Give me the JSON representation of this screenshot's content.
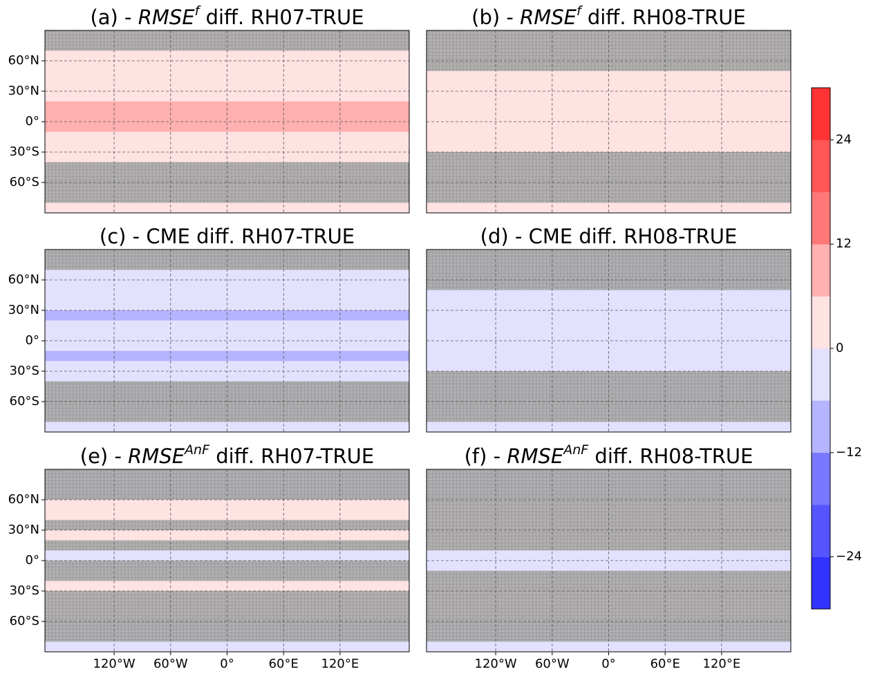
{
  "chart_data": {
    "type": "map_grid",
    "xlim": [
      -193.5,
      193.5
    ],
    "ylim": [
      -90,
      90
    ],
    "xticks": [
      {
        "value": -120,
        "label": "120°W"
      },
      {
        "value": -60,
        "label": "60°W"
      },
      {
        "value": 0,
        "label": "0°"
      },
      {
        "value": 60,
        "label": "60°E"
      },
      {
        "value": 120,
        "label": "120°E"
      }
    ],
    "yticks": [
      {
        "value": 60,
        "label": "60°N"
      },
      {
        "value": 30,
        "label": "30°N"
      },
      {
        "value": 0,
        "label": "0°"
      },
      {
        "value": -30,
        "label": "30°S"
      },
      {
        "value": -60,
        "label": "60°S"
      }
    ],
    "grid": true,
    "mask_color": "#a8a8a8",
    "y": [
      85,
      75,
      65,
      55,
      45,
      35,
      25,
      15,
      5,
      -5,
      -15,
      -25,
      -35,
      -45,
      -55,
      -65,
      -75,
      -85
    ],
    "panels": [
      {
        "title": [
          {
            "text": "(a) - "
          },
          {
            "text": "RMSE",
            "italic": true
          },
          {
            "text": "f",
            "italic": true,
            "sup": true
          },
          {
            "text": " diff. RH07-TRUE"
          }
        ],
        "values": [
          1,
          1,
          2,
          2,
          2,
          3,
          5,
          7,
          7,
          6,
          5,
          4,
          2,
          1,
          1,
          1,
          1,
          1
        ],
        "masked": [
          true,
          true,
          false,
          false,
          false,
          false,
          false,
          false,
          false,
          false,
          false,
          false,
          false,
          true,
          true,
          true,
          true,
          false
        ]
      },
      {
        "title": [
          {
            "text": "(b) - "
          },
          {
            "text": "RMSE",
            "italic": true
          },
          {
            "text": "f",
            "italic": true,
            "sup": true
          },
          {
            "text": " diff. RH08-TRUE"
          }
        ],
        "values": [
          1,
          1,
          1,
          1,
          2,
          2,
          4,
          5,
          5,
          5,
          4,
          3,
          2,
          1,
          1,
          1,
          1,
          1
        ],
        "masked": [
          true,
          true,
          true,
          true,
          false,
          false,
          false,
          false,
          false,
          false,
          false,
          false,
          true,
          true,
          true,
          true,
          true,
          false
        ]
      },
      {
        "title": [
          {
            "text": "(c) - CME diff. RH07-TRUE"
          }
        ],
        "values": [
          -1,
          -2,
          -2,
          -2,
          -3,
          -4,
          -7,
          -6,
          -4,
          -5,
          -7,
          -6,
          -3,
          -2,
          -1,
          -1,
          -1,
          -1
        ],
        "masked": [
          true,
          true,
          false,
          false,
          false,
          false,
          false,
          false,
          false,
          false,
          false,
          false,
          false,
          true,
          true,
          true,
          true,
          false
        ]
      },
      {
        "title": [
          {
            "text": "(d) - CME diff. RH08-TRUE"
          }
        ],
        "values": [
          -1,
          -1,
          -1,
          -1,
          -2,
          -2,
          -4,
          -4,
          -3,
          -3,
          -4,
          -3,
          -2,
          -1,
          -1,
          -1,
          -1,
          -1
        ],
        "masked": [
          true,
          true,
          true,
          true,
          false,
          false,
          false,
          false,
          false,
          false,
          false,
          false,
          true,
          true,
          true,
          true,
          true,
          false
        ]
      },
      {
        "title": [
          {
            "text": "(e) - "
          },
          {
            "text": "RMSE",
            "italic": true
          },
          {
            "text": "AnF",
            "italic": true,
            "sup": true
          },
          {
            "text": " diff. RH07-TRUE"
          }
        ],
        "values": [
          -2,
          -2,
          -1,
          3,
          4,
          4,
          5,
          2,
          -4,
          -3,
          2,
          3,
          3,
          2,
          1,
          -2,
          -3,
          -2
        ],
        "masked": [
          true,
          true,
          true,
          false,
          false,
          true,
          false,
          true,
          false,
          true,
          true,
          false,
          true,
          true,
          true,
          true,
          true,
          false
        ]
      },
      {
        "title": [
          {
            "text": "(f) - "
          },
          {
            "text": "RMSE",
            "italic": true
          },
          {
            "text": "AnF",
            "italic": true,
            "sup": true
          },
          {
            "text": " diff. RH08-TRUE"
          }
        ],
        "values": [
          -3,
          -2,
          -1,
          1,
          1,
          1,
          2,
          0,
          -5,
          -4,
          -1,
          1,
          1,
          1,
          0,
          -1,
          -1,
          -1
        ],
        "masked": [
          true,
          true,
          true,
          true,
          true,
          true,
          true,
          true,
          false,
          false,
          true,
          true,
          true,
          true,
          true,
          true,
          true,
          false
        ]
      }
    ],
    "colorbar": {
      "ylim": [
        -30,
        30
      ],
      "yticks": [
        {
          "value": -24,
          "label": "−24"
        },
        {
          "value": -12,
          "label": "−12"
        },
        0,
        12,
        24
      ],
      "levels": [
        -30,
        -24,
        -18,
        -12,
        -6,
        0,
        6,
        12,
        18,
        24,
        30
      ],
      "colors": [
        "#3333ff",
        "#5555ff",
        "#7878ff",
        "#b4b4ff",
        "#e2e2ff",
        "#ffe2e2",
        "#ffb0b0",
        "#ff7878",
        "#ff5555",
        "#ff3333"
      ]
    }
  }
}
